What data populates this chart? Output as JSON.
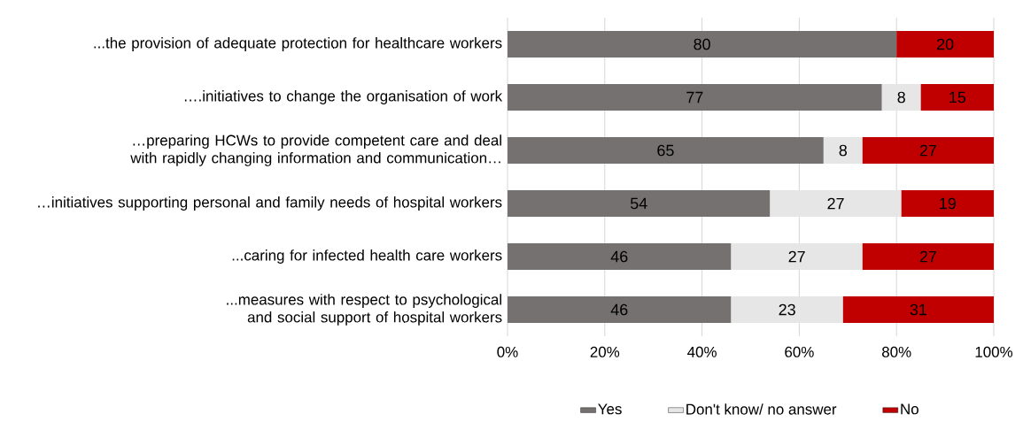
{
  "chart_data": {
    "type": "bar",
    "orientation": "horizontal",
    "stacked": true,
    "categories": [
      "...the provision of adequate protection for healthcare workers",
      "….initiatives to change the organisation of work",
      "…preparing HCWs to provide competent care and deal with rapidly changing information and communication…",
      "…initiatives supporting personal and family needs of hospital workers",
      "...caring for infected health care workers",
      "...measures with respect to psychological and social support of hospital workers"
    ],
    "series": [
      {
        "name": "Yes",
        "color": "#767171",
        "values": [
          80,
          77,
          65,
          54,
          46,
          46
        ]
      },
      {
        "name": "Don't know/ no answer",
        "color": "#e7e6e6",
        "values": [
          null,
          8,
          8,
          27,
          27,
          23
        ]
      },
      {
        "name": "No",
        "color": "#c00000",
        "values": [
          20,
          15,
          27,
          19,
          27,
          31
        ]
      }
    ],
    "xlim": [
      0,
      100
    ],
    "xticks": [
      {
        "value": 0,
        "label": "0%"
      },
      {
        "value": 20,
        "label": "20%"
      },
      {
        "value": 40,
        "label": "40%"
      },
      {
        "value": 60,
        "label": "60%"
      },
      {
        "value": 80,
        "label": "80%"
      },
      {
        "value": 100,
        "label": "100%"
      }
    ],
    "grid": "x",
    "legend": "bottom",
    "data_labels": true
  }
}
